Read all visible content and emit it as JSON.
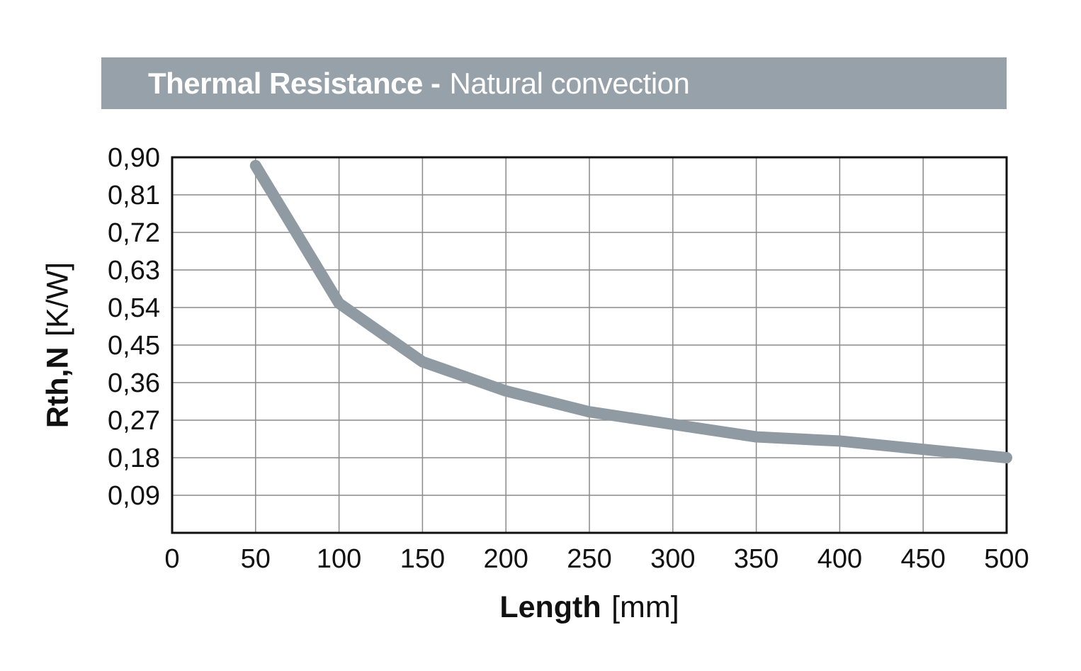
{
  "banner": {
    "title_bold": "Thermal Resistance -",
    "title_regular": "Natural convection",
    "bg_color": "#97A1A9",
    "text_color": "#FFFFFF"
  },
  "axis_titles": {
    "x_bold": "Length",
    "x_unit": "[mm]",
    "y_bold": "Rth,N",
    "y_unit": "[K/W]"
  },
  "chart_data": {
    "type": "line",
    "title": "Thermal Resistance - Natural convection",
    "xlabel": "Length [mm]",
    "ylabel": "Rth,N [K/W]",
    "x": [
      50,
      100,
      150,
      200,
      250,
      300,
      350,
      400,
      450,
      500
    ],
    "y": [
      0.88,
      0.55,
      0.41,
      0.34,
      0.29,
      0.26,
      0.23,
      0.22,
      0.2,
      0.18
    ],
    "xlim": [
      0,
      500
    ],
    "ylim": [
      0,
      0.9
    ],
    "x_ticks": [
      0,
      50,
      100,
      150,
      200,
      250,
      300,
      350,
      400,
      450,
      500
    ],
    "x_tick_labels": [
      "0",
      "50",
      "100",
      "150",
      "200",
      "250",
      "300",
      "350",
      "400",
      "450",
      "500"
    ],
    "y_ticks": [
      0.9,
      0.81,
      0.72,
      0.63,
      0.54,
      0.45,
      0.36,
      0.27,
      0.18,
      0.09
    ],
    "y_tick_labels": [
      "0,90",
      "0,81",
      "0,72",
      "0,63",
      "0,54",
      "0,45",
      "0,36",
      "0,27",
      "0,18",
      "0,09"
    ],
    "grid": true,
    "legend": "none",
    "line_color": "#8F9AA3",
    "line_width": 16,
    "grid_color": "#8A8A8A",
    "axis_color": "#111111"
  }
}
